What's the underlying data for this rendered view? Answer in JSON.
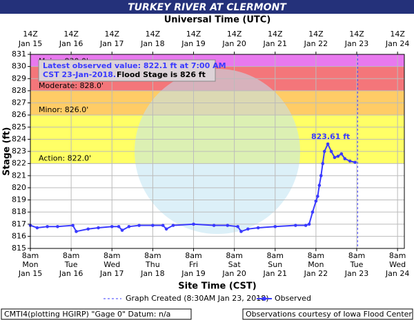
{
  "chart_data": {
    "type": "line",
    "title": "TURKEY RIVER AT CLERMONT",
    "top_axis_title": "Universal Time (UTC)",
    "x_axis_title": "Site Time (CST)",
    "y_axis_title": "Stage (ft)",
    "xlim": [
      "Jan 15 08:00",
      "Jan 24 12:00"
    ],
    "xticks": [
      {
        "value": "Jan 15 08:00",
        "time": "8am",
        "day": "Mon",
        "date": "Jan 15",
        "utc": "14Z"
      },
      {
        "value": "Jan 16 08:00",
        "time": "8am",
        "day": "Tue",
        "date": "Jan 16",
        "utc": "14Z"
      },
      {
        "value": "Jan 17 08:00",
        "time": "8am",
        "day": "Wed",
        "date": "Jan 17",
        "utc": "14Z"
      },
      {
        "value": "Jan 18 08:00",
        "time": "8am",
        "day": "Thu",
        "date": "Jan 18",
        "utc": "14Z"
      },
      {
        "value": "Jan 19 08:00",
        "time": "8am",
        "day": "Fri",
        "date": "Jan 19",
        "utc": "14Z"
      },
      {
        "value": "Jan 20 08:00",
        "time": "8am",
        "day": "Sat",
        "date": "Jan 20",
        "utc": "14Z"
      },
      {
        "value": "Jan 21 08:00",
        "time": "8am",
        "day": "Sun",
        "date": "Jan 21",
        "utc": "14Z"
      },
      {
        "value": "Jan 22 08:00",
        "time": "8am",
        "day": "Mon",
        "date": "Jan 22",
        "utc": "14Z"
      },
      {
        "value": "Jan 23 08:00",
        "time": "8am",
        "day": "Tue",
        "date": "Jan 23",
        "utc": "14Z"
      },
      {
        "value": "Jan 24 08:00",
        "time": "8am",
        "day": "Wed",
        "date": "Jan 24",
        "utc": "14Z"
      }
    ],
    "ylim": [
      815,
      831
    ],
    "yticks": [
      815,
      816,
      817,
      818,
      819,
      820,
      821,
      822,
      823,
      824,
      825,
      826,
      827,
      828,
      829,
      830,
      831
    ],
    "grid": true,
    "thresholds": [
      {
        "label": "Action: 822.0'",
        "value": 822,
        "top": 826,
        "color": "#ffff66"
      },
      {
        "label": "Minor: 826.0'",
        "value": 826,
        "top": 828,
        "color": "#ffcc66"
      },
      {
        "label": "Moderate: 828.0'",
        "value": 828,
        "top": 830,
        "color": "#f4767a"
      },
      {
        "label": "Major: 830.0'",
        "value": 830,
        "top": 831,
        "color": "#e879ee"
      }
    ],
    "series": [
      {
        "name": "Observed",
        "color": "#3a3aff",
        "x": [
          "Jan 15 08:00",
          "Jan 15 12:00",
          "Jan 15 18:00",
          "Jan 16 00:00",
          "Jan 16 09:00",
          "Jan 16 11:00",
          "Jan 16 18:00",
          "Jan 17 00:00",
          "Jan 17 08:00",
          "Jan 17 12:00",
          "Jan 17 14:00",
          "Jan 17 18:00",
          "Jan 18 00:00",
          "Jan 18 08:00",
          "Jan 18 14:00",
          "Jan 18 16:00",
          "Jan 18 20:00",
          "Jan 19 08:00",
          "Jan 19 20:00",
          "Jan 20 04:00",
          "Jan 20 10:00",
          "Jan 20 12:00",
          "Jan 20 16:00",
          "Jan 20 22:00",
          "Jan 21 08:00",
          "Jan 21 20:00",
          "Jan 22 02:00",
          "Jan 22 04:00",
          "Jan 22 06:00",
          "Jan 22 08:00",
          "Jan 22 09:00",
          "Jan 22 10:00",
          "Jan 22 11:00",
          "Jan 22 12:00",
          "Jan 22 13:00",
          "Jan 22 15:00",
          "Jan 22 17:00",
          "Jan 22 19:00",
          "Jan 22 21:00",
          "Jan 22 23:00",
          "Jan 23 01:00",
          "Jan 23 04:00",
          "Jan 23 07:00"
        ],
        "values": [
          816.9,
          816.7,
          816.8,
          816.8,
          816.9,
          816.4,
          816.6,
          816.7,
          816.8,
          816.8,
          816.5,
          816.8,
          816.9,
          816.9,
          816.9,
          816.6,
          816.9,
          817.0,
          816.9,
          816.9,
          816.8,
          816.4,
          816.6,
          816.7,
          816.8,
          816.9,
          816.9,
          817.0,
          818.0,
          818.9,
          819.3,
          820.2,
          821.0,
          822.0,
          823.0,
          823.61,
          823.0,
          822.5,
          822.6,
          822.8,
          822.4,
          822.2,
          822.1
        ]
      }
    ],
    "peak_label": "823.61 ft",
    "info": {
      "line1": "Latest observed value: 822.1 ft at 7:00 AM",
      "line2": "CST 23-Jan-2018.",
      "flood_stage": "Flood Stage is 826 ft"
    },
    "graph_created": {
      "x": "Jan 23 08:30",
      "label": "Graph Created (8:30AM Jan 23, 2018)"
    },
    "footer_left": "CMTI4(plotting HGIRP) \"Gage 0\" Datum: n/a",
    "footer_right": "Observations courtesy of Iowa Flood Center"
  }
}
